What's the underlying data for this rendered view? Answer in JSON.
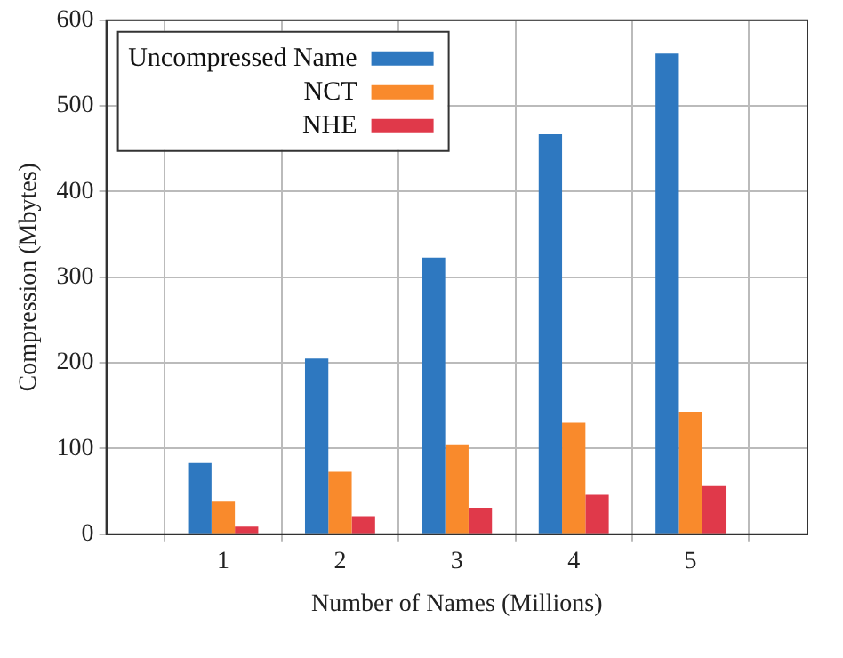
{
  "chart_data": {
    "type": "bar",
    "xlabel": "Number of Names (Millions)",
    "ylabel": "Compression (Mbytes)",
    "x": [
      1,
      2,
      3,
      4,
      5
    ],
    "xlim": [
      0,
      6
    ],
    "xticks": [
      1,
      2,
      3,
      4,
      5
    ],
    "ylim": [
      0,
      600
    ],
    "yticks": [
      0,
      100,
      200,
      300,
      400,
      500,
      600
    ],
    "grid": true,
    "legend": "top left",
    "series": [
      {
        "name": "Uncompressed Name",
        "color": "#2e78c0",
        "values": [
          83,
          205,
          323,
          467,
          561
        ]
      },
      {
        "name": "NCT",
        "color": "#f98a2c",
        "values": [
          39,
          73,
          105,
          130,
          143
        ]
      },
      {
        "name": "NHE",
        "color": "#e0394a",
        "values": [
          9,
          21,
          31,
          46,
          56
        ]
      }
    ]
  }
}
